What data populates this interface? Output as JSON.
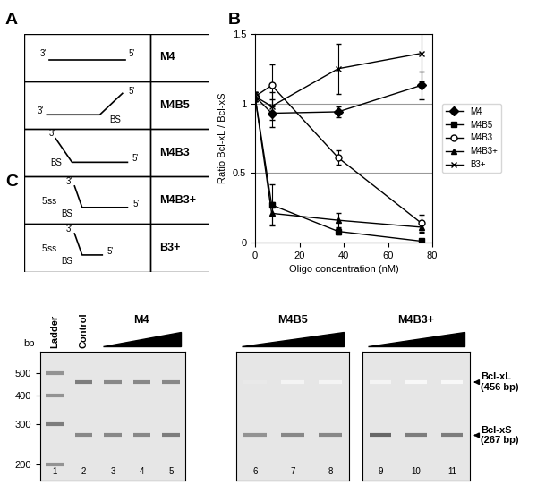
{
  "panel_A": {
    "panel_label": "A",
    "rows": [
      {
        "texts": [
          "3'",
          "5'"
        ],
        "name": "M4"
      },
      {
        "texts": [
          "3'",
          "5'",
          "BS"
        ],
        "name": "M4B5"
      },
      {
        "texts": [
          "3'",
          "BS",
          "5'"
        ],
        "name": "M4B3"
      },
      {
        "texts": [
          "3'",
          "5'ss",
          "BS",
          "5'"
        ],
        "name": "M4B3+"
      },
      {
        "texts": [
          "3'",
          "5'ss",
          "BS",
          "5'"
        ],
        "name": "B3+"
      }
    ]
  },
  "chart_data": {
    "panel_label": "B",
    "type": "line",
    "x_label": "Oligo concentration (nM)",
    "y_label": "Ratio Bcl-xL / Bcl-xS",
    "x": [
      0,
      7.5,
      37.5,
      75
    ],
    "xlim": [
      0,
      80
    ],
    "xticks": [
      0,
      20,
      40,
      60,
      80
    ],
    "ylim": [
      0,
      1.5
    ],
    "yticks": [
      0,
      0.5,
      1,
      1.5
    ],
    "grid": true,
    "legend": "right",
    "series": [
      {
        "name": "M4",
        "color": "#000000",
        "marker": "diamond",
        "line_style": "solid",
        "values": [
          1.05,
          0.93,
          0.94,
          1.13
        ],
        "errors": [
          0.03,
          0.1,
          0.04,
          0.1
        ]
      },
      {
        "name": "M4B5",
        "color": "#000000",
        "marker": "square",
        "line_style": "solid",
        "values": [
          1.05,
          0.27,
          0.08,
          0.01
        ],
        "errors": [
          0.03,
          0.15,
          0.02,
          0.01
        ]
      },
      {
        "name": "M4B3",
        "color": "#000000",
        "marker": "open_circle",
        "line_style": "solid",
        "values": [
          1.05,
          1.13,
          0.61,
          0.14
        ],
        "errors": [
          0.03,
          0.15,
          0.05,
          0.06
        ]
      },
      {
        "name": "M4B3+",
        "color": "#000000",
        "marker": "triangle",
        "line_style": "solid",
        "values": [
          1.05,
          0.21,
          0.16,
          0.11
        ],
        "errors": [
          0.03,
          0.08,
          0.05,
          0.04
        ]
      },
      {
        "name": "B3+",
        "color": "#000000",
        "marker": "x",
        "line_style": "solid",
        "values": [
          1.05,
          0.98,
          1.25,
          1.36
        ],
        "errors": [
          0.03,
          0.1,
          0.18,
          0.2
        ]
      }
    ]
  },
  "panel_C": {
    "panel_label": "C",
    "y_title": "bp",
    "log": "y",
    "ylim": [
      170,
      620
    ],
    "yticks": [
      200,
      300,
      400,
      500
    ],
    "markers": [
      {
        "bp": 456,
        "label": "Bcl-xL",
        "sublabel": "(456 bp)"
      },
      {
        "bp": 267,
        "label": "Bcl-xS",
        "sublabel": "(267 bp)"
      }
    ],
    "gels": [
      {
        "tick_labels": true,
        "group": {
          "label": "M4",
          "lanes": [
            3,
            4,
            5
          ]
        },
        "lanes": [
          {
            "number": 1,
            "header": "Ladder",
            "bands": [
              {
                "bp": 500,
                "intensity": 0.5
              },
              {
                "bp": 400,
                "intensity": 0.5
              },
              {
                "bp": 300,
                "intensity": 0.6
              },
              {
                "bp": 200,
                "intensity": 0.5
              }
            ]
          },
          {
            "number": 2,
            "header": "Control",
            "bands": [
              {
                "bp": 456,
                "intensity": 0.6
              },
              {
                "bp": 267,
                "intensity": 0.55
              }
            ]
          },
          {
            "number": 3,
            "header": null,
            "bands": [
              {
                "bp": 456,
                "intensity": 0.55
              },
              {
                "bp": 267,
                "intensity": 0.55
              }
            ]
          },
          {
            "number": 4,
            "header": null,
            "bands": [
              {
                "bp": 456,
                "intensity": 0.55
              },
              {
                "bp": 267,
                "intensity": 0.55
              }
            ]
          },
          {
            "number": 5,
            "header": null,
            "bands": [
              {
                "bp": 456,
                "intensity": 0.55
              },
              {
                "bp": 267,
                "intensity": 0.6
              }
            ]
          }
        ]
      },
      {
        "tick_labels": false,
        "group": {
          "label": "M4B5",
          "lanes": [
            6,
            7,
            8
          ]
        },
        "lanes": [
          {
            "number": 6,
            "header": null,
            "bands": [
              {
                "bp": 456,
                "intensity": 0.1
              },
              {
                "bp": 267,
                "intensity": 0.5
              }
            ]
          },
          {
            "number": 7,
            "header": null,
            "bands": [
              {
                "bp": 456,
                "intensity": 0.05
              },
              {
                "bp": 267,
                "intensity": 0.55
              }
            ]
          },
          {
            "number": 8,
            "header": null,
            "bands": [
              {
                "bp": 456,
                "intensity": 0.05
              },
              {
                "bp": 267,
                "intensity": 0.55
              }
            ]
          }
        ]
      },
      {
        "tick_labels": false,
        "group": {
          "label": "M4B3+",
          "lanes": [
            9,
            10,
            11
          ]
        },
        "lanes": [
          {
            "number": 9,
            "header": null,
            "bands": [
              {
                "bp": 456,
                "intensity": 0.05
              },
              {
                "bp": 267,
                "intensity": 0.7
              }
            ]
          },
          {
            "number": 10,
            "header": null,
            "bands": [
              {
                "bp": 456,
                "intensity": 0.03
              },
              {
                "bp": 267,
                "intensity": 0.6
              }
            ]
          },
          {
            "number": 11,
            "header": null,
            "bands": [
              {
                "bp": 456,
                "intensity": 0.03
              },
              {
                "bp": 267,
                "intensity": 0.6
              }
            ]
          }
        ]
      }
    ]
  }
}
